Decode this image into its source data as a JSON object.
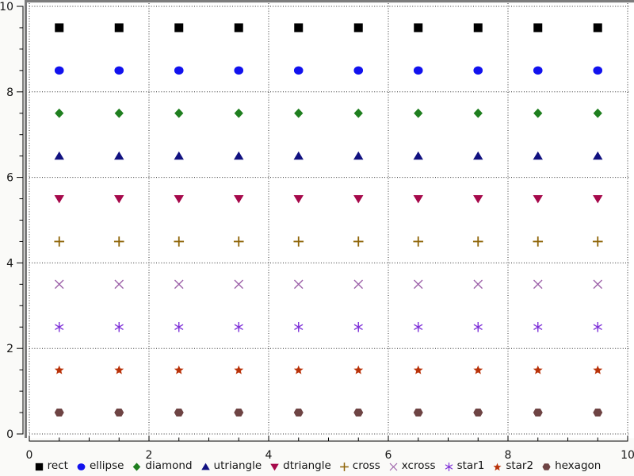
{
  "chart_data": {
    "type": "scatter",
    "title": "",
    "xlabel": "",
    "ylabel": "",
    "xlim": [
      0,
      10
    ],
    "ylim": [
      0,
      10
    ],
    "x_tick_labels": [
      "0",
      "2",
      "4",
      "6",
      "8",
      "10"
    ],
    "y_tick_labels": [
      "0",
      "2",
      "4",
      "6",
      "8",
      "10"
    ],
    "labeled_tick_values": [
      0,
      2,
      4,
      6,
      8,
      10
    ],
    "minor_tick_step": 0.5,
    "grid": "dotted lines at labeled ticks, both axes",
    "x": [
      0.5,
      1.5,
      2.5,
      3.5,
      4.5,
      5.5,
      6.5,
      7.5,
      8.5,
      9.5
    ],
    "series": [
      {
        "name": "rect",
        "marker": "rect",
        "color": "#000000",
        "y": 9.5
      },
      {
        "name": "ellipse",
        "marker": "ellipse",
        "color": "#1212ee",
        "y": 8.5
      },
      {
        "name": "diamond",
        "marker": "diamond",
        "color": "#1f7f1f",
        "y": 7.5
      },
      {
        "name": "utriangle",
        "marker": "utriangle",
        "color": "#111180",
        "y": 6.5
      },
      {
        "name": "dtriangle",
        "marker": "dtriangle",
        "color": "#a6094b",
        "y": 5.5
      },
      {
        "name": "cross",
        "marker": "cross",
        "color": "#8f6508",
        "y": 4.5
      },
      {
        "name": "xcross",
        "marker": "xcross",
        "color": "#9d62a9",
        "y": 3.5
      },
      {
        "name": "star1",
        "marker": "star1",
        "color": "#7e30d8",
        "y": 2.5
      },
      {
        "name": "star2",
        "marker": "star2",
        "color": "#b93209",
        "y": 1.5
      },
      {
        "name": "hexagon",
        "marker": "hexagon",
        "color": "#6e4444",
        "y": 0.5
      }
    ],
    "legend": {
      "position": "bottom-center",
      "entries": [
        "rect",
        "ellipse",
        "diamond",
        "utriangle",
        "dtriangle",
        "cross",
        "xcross",
        "star1",
        "star2",
        "hexagon"
      ]
    },
    "style_colors": {
      "panel_border_gray": "#7c7c7c",
      "plot_background": "#ffffff",
      "grid_dot_color": "#2e2e2e",
      "axis_color": "#000000",
      "tick_label_color": "#151515"
    }
  }
}
